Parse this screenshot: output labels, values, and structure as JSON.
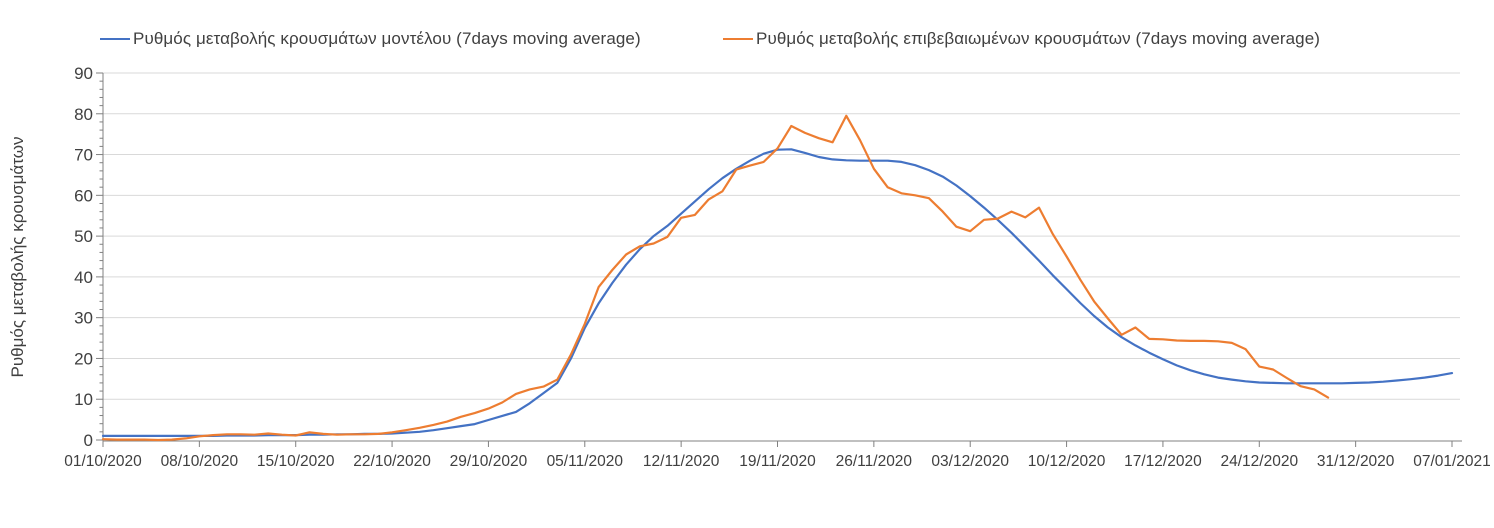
{
  "colors": {
    "background": "#FFFFFF",
    "text": "#404040",
    "gridline": "#D9D9D9",
    "axis": "#808080",
    "series_model": "#4472C4",
    "series_confirmed": "#ED7D31"
  },
  "legend": {
    "position": "top",
    "items": [
      {
        "label": "Ρυθμός μεταβολής κρουσμάτων μοντέλου (7days moving average)",
        "color": "#4472C4"
      },
      {
        "label": "Ρυθμός μεταβολής επιβεβαιωμένων κρουσμάτων (7days moving average)",
        "color": "#ED7D31"
      }
    ]
  },
  "chart_data": {
    "type": "line",
    "title": "",
    "xlabel": "",
    "ylabel": "Ρυθμός μεταβολής κρουσμάτων",
    "ylim": [
      0,
      90
    ],
    "y_tick_step": 10,
    "y_minor_tick_step": 2,
    "grid": "horizontal",
    "legend_position": "top",
    "x_range_days": [
      0,
      98
    ],
    "x_tick_interval_days": 7,
    "x_tick_labels": [
      "01/10/2020",
      "08/10/2020",
      "15/10/2020",
      "22/10/2020",
      "29/10/2020",
      "05/11/2020",
      "12/11/2020",
      "19/11/2020",
      "26/11/2020",
      "03/12/2020",
      "10/12/2020",
      "17/12/2020",
      "24/12/2020",
      "31/12/2020",
      "07/01/2021"
    ],
    "series": [
      {
        "name": "Ρυθμός μεταβολής κρουσμάτων μοντέλου (7days moving average)",
        "color": "#4472C4",
        "start_date": "01/10/2020",
        "end_date": "07/01/2021",
        "values": [
          1.0,
          1.0,
          1.0,
          1.0,
          1.0,
          1.0,
          1.0,
          1.0,
          1.0,
          1.1,
          1.1,
          1.1,
          1.2,
          1.2,
          1.2,
          1.3,
          1.3,
          1.4,
          1.4,
          1.5,
          1.5,
          1.6,
          1.8,
          2.0,
          2.4,
          2.9,
          3.4,
          3.9,
          4.9,
          5.9,
          6.9,
          9.0,
          11.5,
          14.0,
          20.0,
          27.5,
          33.5,
          38.5,
          43.0,
          46.8,
          50.0,
          52.5,
          55.5,
          58.5,
          61.5,
          64.2,
          66.5,
          68.5,
          70.2,
          71.2,
          71.3,
          70.4,
          69.4,
          68.8,
          68.6,
          68.5,
          68.5,
          68.5,
          68.2,
          67.4,
          66.2,
          64.6,
          62.4,
          59.8,
          57.0,
          54.0,
          50.8,
          47.4,
          44.0,
          40.4,
          37.0,
          33.6,
          30.4,
          27.6,
          25.2,
          23.2,
          21.4,
          19.8,
          18.3,
          17.1,
          16.1,
          15.3,
          14.8,
          14.4,
          14.1,
          14.0,
          13.9,
          13.9,
          13.9,
          13.9,
          13.9,
          14.0,
          14.1,
          14.3,
          14.6,
          14.9,
          15.3,
          15.8,
          16.4
        ]
      },
      {
        "name": "Ρυθμός μεταβολής επιβεβαιωμένων κρουσμάτων (7days moving average)",
        "color": "#ED7D31",
        "start_date": "01/10/2020",
        "end_date": "29/12/2020",
        "values": [
          0.2,
          0.1,
          0.1,
          0.1,
          0.0,
          0.1,
          0.4,
          0.9,
          1.2,
          1.4,
          1.4,
          1.3,
          1.6,
          1.3,
          1.1,
          1.9,
          1.5,
          1.3,
          1.4,
          1.4,
          1.5,
          1.9,
          2.4,
          3.0,
          3.7,
          4.5,
          5.7,
          6.6,
          7.7,
          9.2,
          11.3,
          12.4,
          13.1,
          14.8,
          21.0,
          28.5,
          37.5,
          41.7,
          45.5,
          47.5,
          48.2,
          49.8,
          54.5,
          55.2,
          59.0,
          61.0,
          66.3,
          67.3,
          68.2,
          71.5,
          77.0,
          75.3,
          74.0,
          73.0,
          79.5,
          73.5,
          66.5,
          62.0,
          60.5,
          60.0,
          59.3,
          56.0,
          52.3,
          51.2,
          54.0,
          54.3,
          56.0,
          54.6,
          57.0,
          50.5,
          45.0,
          39.3,
          34.0,
          29.8,
          25.8,
          27.6,
          24.8,
          24.7,
          24.4,
          24.3,
          24.3,
          24.2,
          23.8,
          22.3,
          18.0,
          17.3,
          15.2,
          13.2,
          12.4,
          10.4
        ]
      }
    ]
  }
}
